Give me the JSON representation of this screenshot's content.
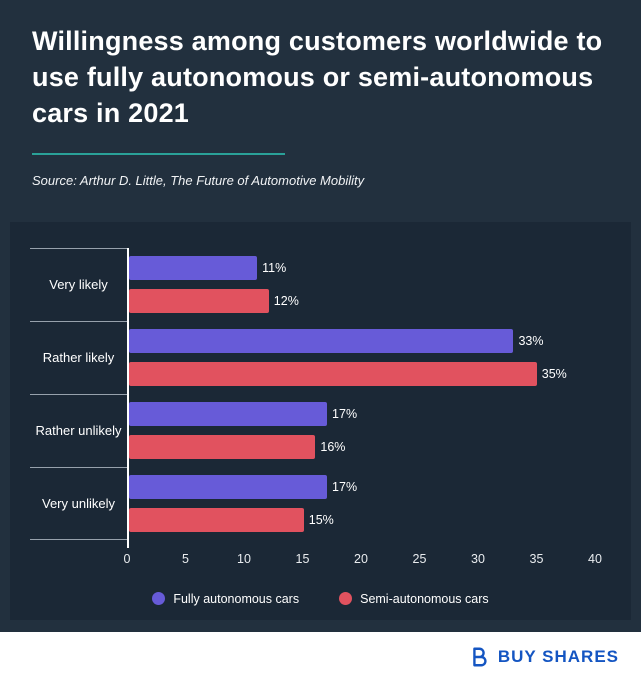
{
  "header": {
    "title": "Willingness among customers worldwide to use fully autonomous or semi-autonomous cars in 2021",
    "source": "Source: Arthur D. Little, The Future of Automotive Mobility"
  },
  "chart_data": {
    "type": "bar",
    "orientation": "horizontal",
    "title": "Willingness among customers worldwide to use fully autonomous or semi-autonomous cars in 2021",
    "categories": [
      "Very likely",
      "Rather likely",
      "Rather unlikely",
      "Very unlikely"
    ],
    "series": [
      {
        "name": "Fully autonomous cars",
        "color": "#675bd8",
        "values": [
          11,
          33,
          17,
          17
        ]
      },
      {
        "name": "Semi-autonomous cars",
        "color": "#e1525f",
        "values": [
          12,
          35,
          16,
          15
        ]
      }
    ],
    "value_suffix": "%",
    "xlim": [
      0,
      40
    ],
    "x_ticks": [
      "0",
      "5",
      "10",
      "15",
      "20",
      "25",
      "30",
      "35",
      "40"
    ],
    "legend_position": "bottom",
    "grid": false
  },
  "colors": {
    "background": "#22303e",
    "panel": "#1b2836",
    "divider_accent": "#2aa198",
    "axis": "#ffffff",
    "category_divider": "#97a1ac",
    "brand_blue": "#1455c2"
  },
  "footer": {
    "brand": "BUY SHARES"
  }
}
